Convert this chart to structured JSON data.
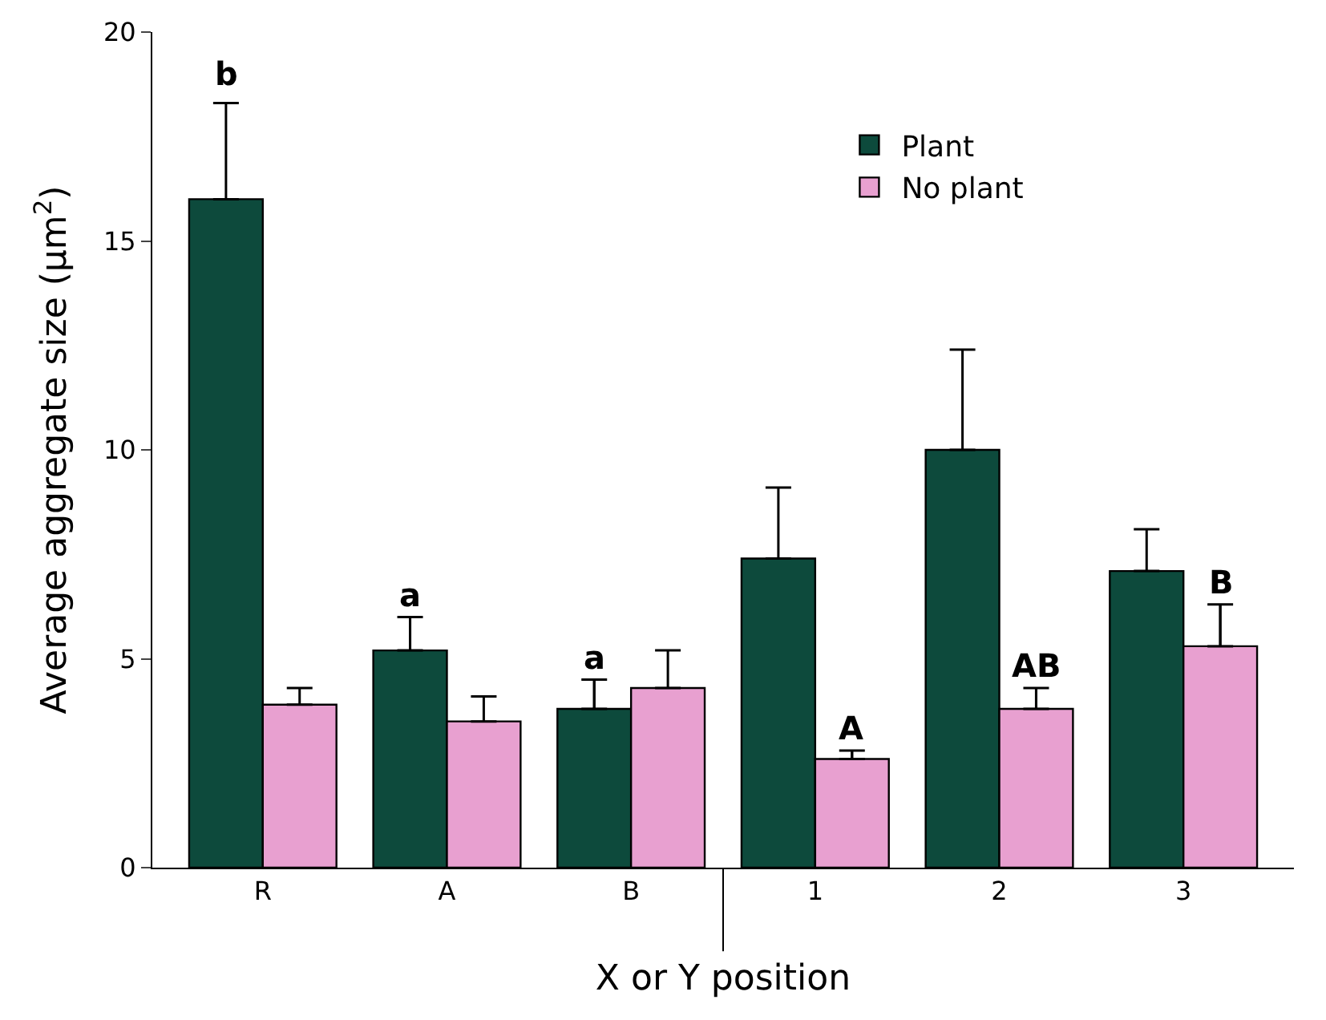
{
  "chart_data": {
    "type": "bar",
    "xlabel": "X or Y position",
    "ylabel": "Average aggregate size (μm$^{2}$)",
    "categories": [
      "R",
      "A",
      "B",
      "1",
      "2",
      "3"
    ],
    "series": [
      {
        "name": "Plant",
        "color": "#0d4a3c",
        "values": [
          16.0,
          5.2,
          3.8,
          7.4,
          10.0,
          7.1
        ],
        "errors": [
          [
            16.0,
            18.3
          ],
          [
            5.2,
            6.0
          ],
          [
            3.8,
            4.5
          ],
          [
            7.4,
            9.1
          ],
          [
            10.0,
            12.4
          ],
          [
            7.1,
            8.1
          ]
        ]
      },
      {
        "name": "No plant",
        "color": "#e8a0d0",
        "values": [
          3.9,
          3.5,
          4.3,
          2.6,
          3.8,
          5.3
        ],
        "errors": [
          [
            3.9,
            4.3
          ],
          [
            3.5,
            4.1
          ],
          [
            4.3,
            5.2
          ],
          [
            2.6,
            2.8
          ],
          [
            3.8,
            4.3
          ],
          [
            5.3,
            6.3
          ]
        ]
      }
    ],
    "ylim": [
      0,
      20
    ],
    "yticks": [
      0,
      5,
      10,
      15,
      20
    ],
    "grid": false,
    "legend": "top right",
    "annotations": [
      "b",
      {
        "text": "a",
        "x": "A",
        "y": 5.2
      },
      {
        "text": "a",
        "x": "B",
        "y": 3.8
      },
      {
        "text": "A",
        "x": "1",
        "y": 2.6
      },
      {
        "text": "AB",
        "x": "2",
        "y": 3.8
      },
      {
        "text": "B",
        "x": "3",
        "y": 5.3
      }
    ]
  }
}
